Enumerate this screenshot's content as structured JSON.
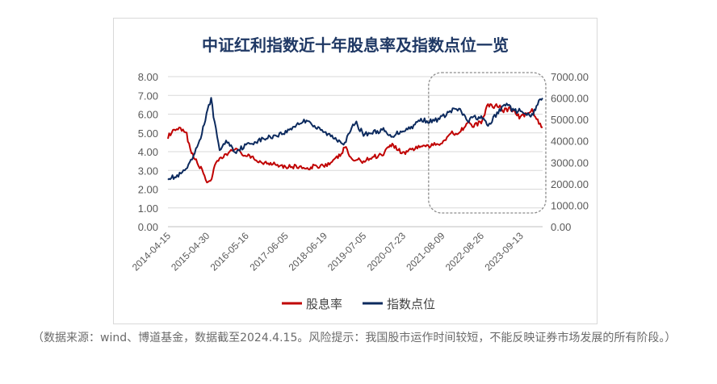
{
  "chart_data": {
    "type": "line",
    "title": "中证红利指数近十年股息率及指数点位一览",
    "xlabel": "",
    "ylabel_left": "",
    "ylabel_right": "",
    "ylim_left": [
      0,
      8
    ],
    "ylim_right": [
      0,
      7000
    ],
    "y_ticks_left": [
      "0.00",
      "1.00",
      "2.00",
      "3.00",
      "4.00",
      "5.00",
      "6.00",
      "7.00",
      "8.00"
    ],
    "y_ticks_right": [
      "0.00",
      "1000.00",
      "2000.00",
      "3000.00",
      "4000.00",
      "5000.00",
      "6000.00",
      "7000.00"
    ],
    "x_ticks": [
      "2014-04-15",
      "2015-04-30",
      "2016-05-16",
      "2017-06-05",
      "2018-06-19",
      "2019-07-05",
      "2020-07-23",
      "2021-08-09",
      "2022-08-26",
      "2023-09-13"
    ],
    "grid": true,
    "legend_position": "bottom",
    "highlight_box": {
      "from": "2021-05-01",
      "to": "2024-04-15"
    },
    "series": [
      {
        "name": "股息率",
        "axis": "left",
        "color": "#c00000",
        "points": [
          [
            "2014-04-15",
            4.8
          ],
          [
            "2014-06-15",
            5.1
          ],
          [
            "2014-08-15",
            5.2
          ],
          [
            "2014-10-15",
            4.9
          ],
          [
            "2014-12-01",
            3.9
          ],
          [
            "2015-01-15",
            3.5
          ],
          [
            "2015-03-15",
            3.0
          ],
          [
            "2015-04-30",
            2.4
          ],
          [
            "2015-06-15",
            2.5
          ],
          [
            "2015-07-15",
            3.2
          ],
          [
            "2015-09-01",
            3.6
          ],
          [
            "2015-11-01",
            3.8
          ],
          [
            "2016-01-15",
            4.2
          ],
          [
            "2016-03-01",
            4.0
          ],
          [
            "2016-05-16",
            3.8
          ],
          [
            "2016-08-01",
            3.6
          ],
          [
            "2016-11-01",
            3.4
          ],
          [
            "2017-02-01",
            3.4
          ],
          [
            "2017-06-05",
            3.2
          ],
          [
            "2017-09-01",
            3.2
          ],
          [
            "2017-11-01",
            3.2
          ],
          [
            "2018-01-15",
            3.0
          ],
          [
            "2018-03-01",
            3.2
          ],
          [
            "2018-06-19",
            3.3
          ],
          [
            "2018-09-01",
            3.4
          ],
          [
            "2018-12-01",
            3.9
          ],
          [
            "2019-01-15",
            4.3
          ],
          [
            "2019-03-01",
            3.6
          ],
          [
            "2019-07-05",
            3.5
          ],
          [
            "2019-10-01",
            3.7
          ],
          [
            "2020-01-15",
            3.9
          ],
          [
            "2020-03-20",
            4.4
          ],
          [
            "2020-05-01",
            4.3
          ],
          [
            "2020-07-23",
            3.9
          ],
          [
            "2020-10-01",
            4.1
          ],
          [
            "2021-01-15",
            4.3
          ],
          [
            "2021-05-01",
            4.3
          ],
          [
            "2021-08-09",
            4.5
          ],
          [
            "2021-11-01",
            5.0
          ],
          [
            "2022-01-15",
            5.0
          ],
          [
            "2022-04-26",
            5.6
          ],
          [
            "2022-06-01",
            5.3
          ],
          [
            "2022-08-26",
            5.6
          ],
          [
            "2022-10-31",
            6.5
          ],
          [
            "2022-12-15",
            6.4
          ],
          [
            "2023-02-01",
            6.5
          ],
          [
            "2023-04-01",
            6.2
          ],
          [
            "2023-06-01",
            6.3
          ],
          [
            "2023-09-13",
            5.8
          ],
          [
            "2023-11-01",
            6.0
          ],
          [
            "2024-01-15",
            6.2
          ],
          [
            "2024-02-15",
            5.7
          ],
          [
            "2024-04-15",
            5.3
          ]
        ]
      },
      {
        "name": "指数点位",
        "axis": "right",
        "color": "#0c2a5e",
        "points": [
          [
            "2014-04-15",
            2300
          ],
          [
            "2014-07-01",
            2300
          ],
          [
            "2014-09-01",
            2500
          ],
          [
            "2014-11-01",
            2800
          ],
          [
            "2015-01-01",
            3400
          ],
          [
            "2015-03-01",
            4200
          ],
          [
            "2015-06-10",
            6000
          ],
          [
            "2015-07-15",
            4800
          ],
          [
            "2015-09-01",
            3600
          ],
          [
            "2015-11-15",
            4000
          ],
          [
            "2016-01-28",
            3500
          ],
          [
            "2016-05-16",
            3800
          ],
          [
            "2016-09-01",
            4000
          ],
          [
            "2017-01-15",
            4200
          ],
          [
            "2017-06-05",
            4400
          ],
          [
            "2017-10-01",
            4800
          ],
          [
            "2018-01-20",
            5000
          ],
          [
            "2018-03-01",
            4700
          ],
          [
            "2018-06-19",
            4400
          ],
          [
            "2018-09-01",
            4200
          ],
          [
            "2019-01-03",
            3900
          ],
          [
            "2019-04-15",
            4900
          ],
          [
            "2019-07-05",
            4300
          ],
          [
            "2019-10-01",
            4400
          ],
          [
            "2020-01-15",
            4500
          ],
          [
            "2020-03-20",
            4200
          ],
          [
            "2020-07-23",
            4500
          ],
          [
            "2020-10-01",
            4600
          ],
          [
            "2021-01-15",
            5000
          ],
          [
            "2021-05-01",
            4900
          ],
          [
            "2021-08-09",
            5100
          ],
          [
            "2021-10-01",
            5300
          ],
          [
            "2021-12-15",
            5500
          ],
          [
            "2022-02-01",
            5400
          ],
          [
            "2022-04-26",
            4900
          ],
          [
            "2022-06-01",
            5100
          ],
          [
            "2022-08-26",
            5100
          ],
          [
            "2022-10-31",
            4700
          ],
          [
            "2023-01-15",
            5200
          ],
          [
            "2023-05-01",
            5800
          ],
          [
            "2023-07-01",
            5400
          ],
          [
            "2023-09-13",
            5400
          ],
          [
            "2023-11-01",
            5200
          ],
          [
            "2024-01-15",
            5200
          ],
          [
            "2024-02-15",
            5700
          ],
          [
            "2024-04-15",
            6000
          ]
        ]
      }
    ]
  },
  "caption": "（数据来源：wind、博道基金，数据截至2024.4.15。风险提示：我国股市运作时间较短，不能反映证券市场发展的所有阶段。）"
}
